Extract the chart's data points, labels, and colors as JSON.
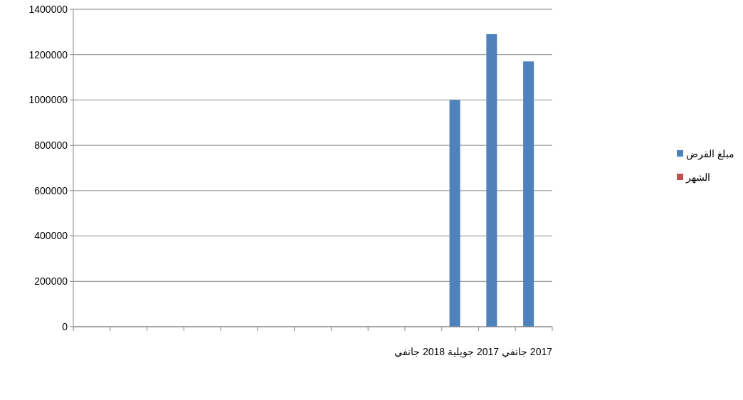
{
  "chart_data": {
    "type": "bar",
    "categories": [
      null,
      null,
      null,
      null,
      null,
      null,
      null,
      null,
      null,
      null,
      null,
      null,
      null
    ],
    "series": [
      {
        "name": "مبلغ القرض",
        "color": "#4f81bd",
        "values": [
          null,
          null,
          null,
          null,
          null,
          null,
          null,
          null,
          null,
          null,
          1000000,
          1290000,
          1170000
        ]
      },
      {
        "name": "الشهر",
        "color": "#c0504d",
        "values": [
          null,
          null,
          null,
          null,
          null,
          null,
          null,
          null,
          null,
          null,
          null,
          null,
          null
        ]
      }
    ],
    "xlabel": "2017 جانفي 2017 جويلية 2018 جانفي",
    "ylim": [
      0,
      1400000
    ],
    "yticks": [
      0,
      200000,
      400000,
      600000,
      800000,
      1000000,
      1200000,
      1400000
    ],
    "grid": "y",
    "legend": "right"
  }
}
